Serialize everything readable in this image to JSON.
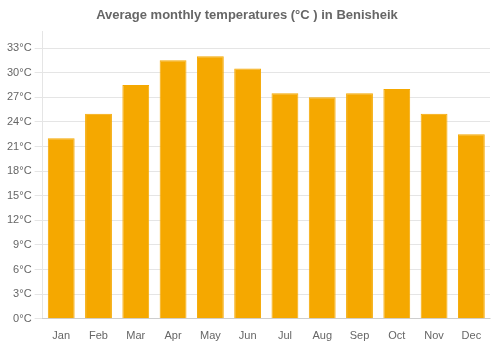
{
  "chart_data": {
    "type": "bar",
    "title": "Average monthly temperatures (°C ) in Benisheik",
    "categories": [
      "Jan",
      "Feb",
      "Mar",
      "Apr",
      "May",
      "Jun",
      "Jul",
      "Aug",
      "Sep",
      "Oct",
      "Nov",
      "Dec"
    ],
    "values": [
      22,
      25,
      28.5,
      31.5,
      32,
      30.5,
      27.5,
      27,
      27.5,
      28,
      25,
      22.5
    ],
    "color": "#F5A800",
    "ylim": [
      0,
      35
    ],
    "yticks": [
      {
        "value": 0,
        "label": "0°C"
      },
      {
        "value": 3,
        "label": "3°C"
      },
      {
        "value": 6,
        "label": "6°C"
      },
      {
        "value": 9,
        "label": "9°C"
      },
      {
        "value": 12,
        "label": "12°C"
      },
      {
        "value": 15,
        "label": "15°C"
      },
      {
        "value": 18,
        "label": "18°C"
      },
      {
        "value": 21,
        "label": "21°C"
      },
      {
        "value": 24,
        "label": "24°C"
      },
      {
        "value": 27,
        "label": "27°C"
      },
      {
        "value": 30,
        "label": "30°C"
      },
      {
        "value": 33,
        "label": "33°C"
      }
    ],
    "grid": true
  }
}
